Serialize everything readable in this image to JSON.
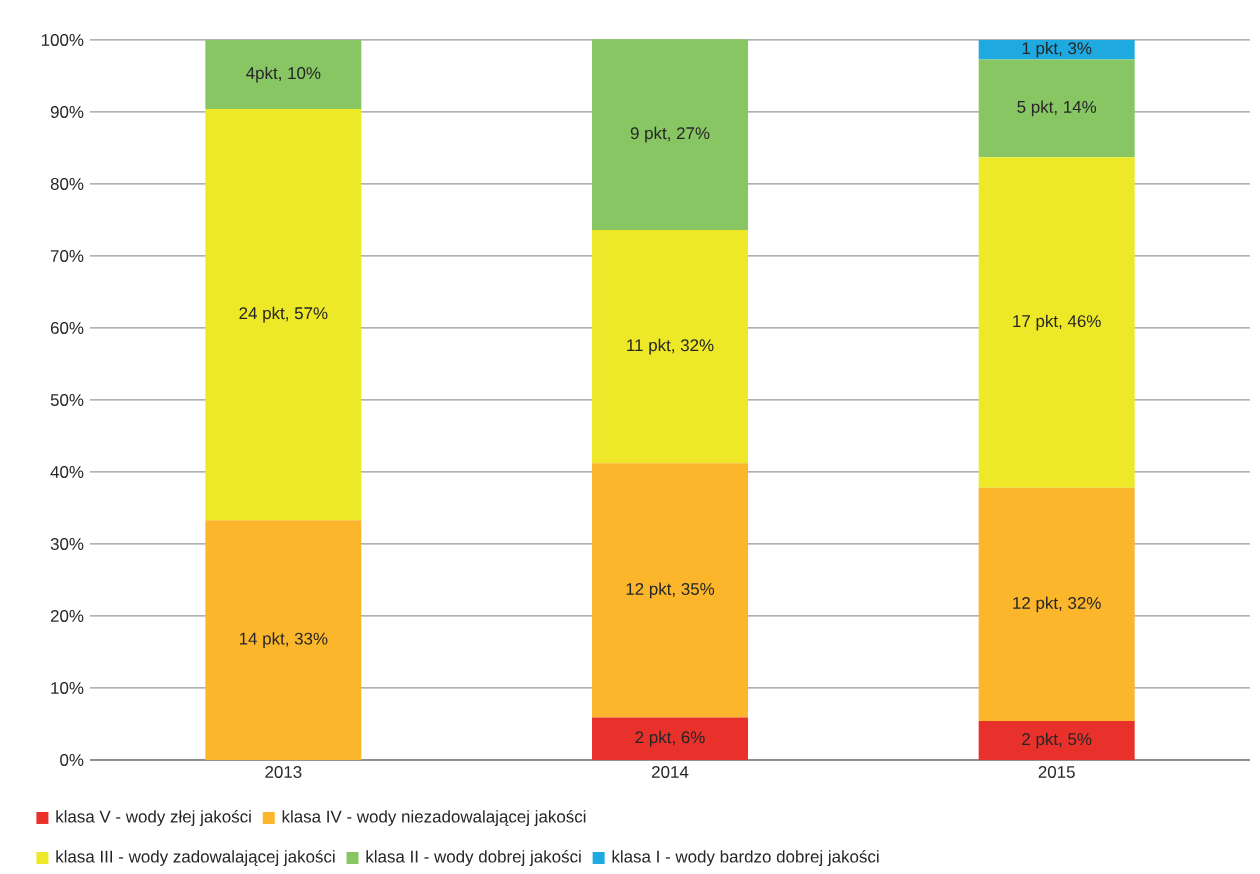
{
  "chart_data": {
    "type": "bar",
    "stacked": true,
    "categories": [
      "2013",
      "2014",
      "2015"
    ],
    "series": [
      {
        "name": "klasa V - wody złej jakości",
        "color": "#e8312b",
        "values": [
          null,
          5.9,
          5.4
        ],
        "value_labels": [
          null,
          "2 pkt, 6%",
          "2 pkt, 5%"
        ]
      },
      {
        "name": "klasa IV - wody niezadowalającej jakości",
        "color": "#fbb62c",
        "values": [
          33.3,
          35.3,
          32.4
        ],
        "value_labels": [
          "14 pkt, 33%",
          "12 pkt, 35%",
          "12 pkt, 32%"
        ]
      },
      {
        "name": "klasa III - wody zadowalającej jakości",
        "color": "#ede828",
        "values": [
          57.1,
          32.4,
          45.9
        ],
        "value_labels": [
          "24 pkt, 57%",
          "11 pkt, 32%",
          "17 pkt, 46%"
        ]
      },
      {
        "name": "klasa II - wody dobrej jakości",
        "color": "#87c663",
        "values": [
          9.6,
          26.5,
          13.6
        ],
        "value_labels": [
          "4pkt, 10%",
          "9 pkt, 27%",
          "5 pkt, 14%"
        ]
      },
      {
        "name": "klasa I - wody bardzo dobrej jakości",
        "color": "#1ea9e1",
        "values": [
          null,
          null,
          2.7
        ],
        "value_labels": [
          null,
          null,
          "1 pkt, 3%"
        ]
      }
    ],
    "ylim": [
      0,
      100
    ],
    "yticks": [
      {
        "value": 0,
        "label": "0%"
      },
      {
        "value": 10,
        "label": "10%"
      },
      {
        "value": 20,
        "label": "20%"
      },
      {
        "value": 30,
        "label": "30%"
      },
      {
        "value": 40,
        "label": "40%"
      },
      {
        "value": 50,
        "label": "50%"
      },
      {
        "value": 60,
        "label": "60%"
      },
      {
        "value": 70,
        "label": "70%"
      },
      {
        "value": 80,
        "label": "80%"
      },
      {
        "value": 90,
        "label": "90%"
      },
      {
        "value": 100,
        "label": "100%"
      }
    ],
    "grid": "y",
    "legend": "bottom"
  }
}
